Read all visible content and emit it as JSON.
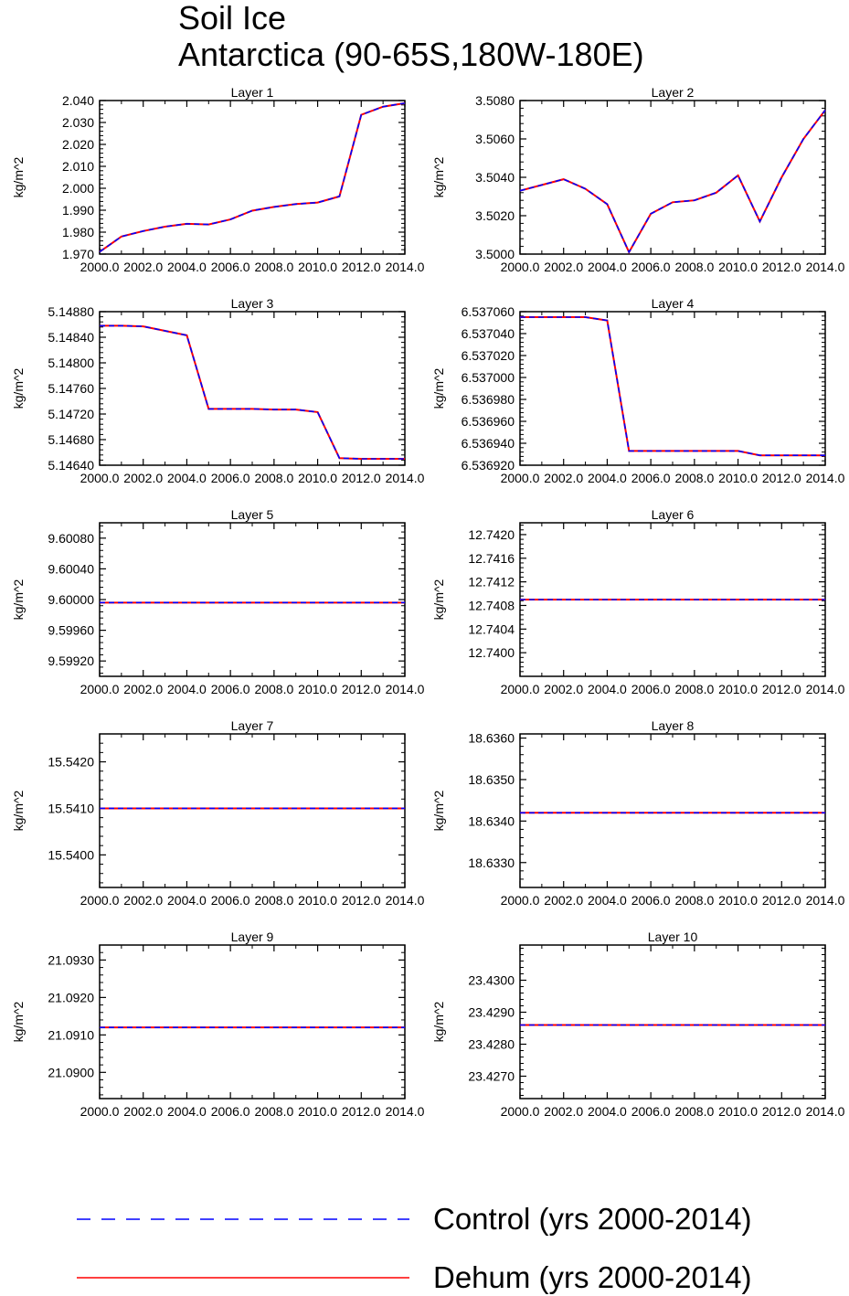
{
  "figure": {
    "title_line1": "Soil Ice",
    "title_line2": "Antarctica (90-65S,180W-180E)"
  },
  "colors": {
    "control": "#0000ff",
    "dehum": "#ff0000",
    "axis": "#000000"
  },
  "legend": [
    {
      "label": "Control (yrs 2000-2014)",
      "style": "dashed",
      "color": "#0000ff"
    },
    {
      "label": "Dehum (yrs 2000-2014)",
      "style": "solid",
      "color": "#ff0000"
    }
  ],
  "chart_data": [
    {
      "type": "line",
      "title": "Layer 1",
      "ylabel": "kg/m^2",
      "xlim": [
        2000,
        2014
      ],
      "ylim": [
        1.97,
        2.04
      ],
      "xticks": [
        2000,
        2002,
        2004,
        2006,
        2008,
        2010,
        2012,
        2014
      ],
      "xticklabels": [
        "2000.0",
        "2002.0",
        "2004.0",
        "2006.0",
        "2008.0",
        "2010.0",
        "2012.0",
        "2014.0"
      ],
      "yticks": [
        1.97,
        1.98,
        1.99,
        2.0,
        2.01,
        2.02,
        2.03,
        2.04
      ],
      "yticklabels": [
        "1.970",
        "1.980",
        "1.990",
        "2.000",
        "2.010",
        "2.020",
        "2.030",
        "2.040"
      ],
      "x": [
        2000,
        2001,
        2002,
        2003,
        2004,
        2005,
        2006,
        2007,
        2008,
        2009,
        2010,
        2011,
        2012,
        2013,
        2014
      ],
      "series": [
        {
          "name": "Control (yrs 2000-2014)",
          "values": [
            1.971,
            1.978,
            1.9805,
            1.9825,
            1.9838,
            1.9835,
            1.9858,
            1.9898,
            1.9915,
            1.9928,
            1.9935,
            1.9963,
            2.0335,
            2.0372,
            2.0388
          ]
        },
        {
          "name": "Dehum (yrs 2000-2014)",
          "values": [
            1.971,
            1.978,
            1.9805,
            1.9825,
            1.9838,
            1.9835,
            1.9858,
            1.9898,
            1.9915,
            1.9928,
            1.9935,
            1.9963,
            2.0335,
            2.0372,
            2.0388
          ]
        }
      ]
    },
    {
      "type": "line",
      "title": "Layer 2",
      "ylabel": "kg/m^2",
      "xlim": [
        2000,
        2014
      ],
      "ylim": [
        3.5,
        3.508
      ],
      "xticks": [
        2000,
        2002,
        2004,
        2006,
        2008,
        2010,
        2012,
        2014
      ],
      "xticklabels": [
        "2000.0",
        "2002.0",
        "2004.0",
        "2006.0",
        "2008.0",
        "2010.0",
        "2012.0",
        "2014.0"
      ],
      "yticks": [
        3.5,
        3.502,
        3.504,
        3.506,
        3.508
      ],
      "yticklabels": [
        "3.5000",
        "3.5020",
        "3.5040",
        "3.5060",
        "3.5080"
      ],
      "x": [
        2000,
        2001,
        2002,
        2003,
        2004,
        2005,
        2006,
        2007,
        2008,
        2009,
        2010,
        2011,
        2012,
        2013,
        2014
      ],
      "series": [
        {
          "name": "Control (yrs 2000-2014)",
          "values": [
            3.5033,
            3.5036,
            3.5039,
            3.5034,
            3.5026,
            3.5001,
            3.5021,
            3.5027,
            3.5028,
            3.5032,
            3.5041,
            3.5017,
            3.504,
            3.506,
            3.5075
          ]
        },
        {
          "name": "Dehum (yrs 2000-2014)",
          "values": [
            3.5033,
            3.5036,
            3.5039,
            3.5034,
            3.5026,
            3.5001,
            3.5021,
            3.5027,
            3.5028,
            3.5032,
            3.5041,
            3.5017,
            3.504,
            3.506,
            3.5075
          ]
        }
      ]
    },
    {
      "type": "line",
      "title": "Layer 3",
      "ylabel": "kg/m^2",
      "xlim": [
        2000,
        2014
      ],
      "ylim": [
        5.1464,
        5.1488
      ],
      "xticks": [
        2000,
        2002,
        2004,
        2006,
        2008,
        2010,
        2012,
        2014
      ],
      "xticklabels": [
        "2000.0",
        "2002.0",
        "2004.0",
        "2006.0",
        "2008.0",
        "2010.0",
        "2012.0",
        "2014.0"
      ],
      "yticks": [
        5.1464,
        5.1468,
        5.1472,
        5.1476,
        5.148,
        5.1484,
        5.1488
      ],
      "yticklabels": [
        "5.14640",
        "5.14680",
        "5.14720",
        "5.14760",
        "5.14800",
        "5.14840",
        "5.14880"
      ],
      "x": [
        2000,
        2001,
        2002,
        2003,
        2004,
        2005,
        2006,
        2007,
        2008,
        2009,
        2010,
        2011,
        2012,
        2013,
        2014
      ],
      "series": [
        {
          "name": "Control (yrs 2000-2014)",
          "values": [
            5.14858,
            5.14858,
            5.14857,
            5.1485,
            5.14843,
            5.14728,
            5.14728,
            5.14728,
            5.14727,
            5.14727,
            5.14723,
            5.14651,
            5.1465,
            5.1465,
            5.1465
          ]
        },
        {
          "name": "Dehum (yrs 2000-2014)",
          "values": [
            5.14858,
            5.14858,
            5.14857,
            5.1485,
            5.14843,
            5.14728,
            5.14728,
            5.14728,
            5.14727,
            5.14727,
            5.14723,
            5.14651,
            5.1465,
            5.1465,
            5.1465
          ]
        }
      ]
    },
    {
      "type": "line",
      "title": "Layer 4",
      "ylabel": "kg/m^2",
      "xlim": [
        2000,
        2014
      ],
      "ylim": [
        6.53692,
        6.53706
      ],
      "xticks": [
        2000,
        2002,
        2004,
        2006,
        2008,
        2010,
        2012,
        2014
      ],
      "xticklabels": [
        "2000.0",
        "2002.0",
        "2004.0",
        "2006.0",
        "2008.0",
        "2010.0",
        "2012.0",
        "2014.0"
      ],
      "yticks": [
        6.53692,
        6.53694,
        6.53696,
        6.53698,
        6.537,
        6.53702,
        6.53704,
        6.53706
      ],
      "yticklabels": [
        "6.536920",
        "6.536940",
        "6.536960",
        "6.536980",
        "6.537000",
        "6.537020",
        "6.537040",
        "6.537060"
      ],
      "x": [
        2000,
        2001,
        2002,
        2003,
        2004,
        2005,
        2006,
        2007,
        2008,
        2009,
        2010,
        2011,
        2012,
        2013,
        2014
      ],
      "series": [
        {
          "name": "Control (yrs 2000-2014)",
          "values": [
            6.537055,
            6.537055,
            6.537055,
            6.537055,
            6.537052,
            6.536933,
            6.536933,
            6.536933,
            6.536933,
            6.536933,
            6.536933,
            6.536929,
            6.536929,
            6.536929,
            6.536929
          ]
        },
        {
          "name": "Dehum (yrs 2000-2014)",
          "values": [
            6.537055,
            6.537055,
            6.537055,
            6.537055,
            6.537052,
            6.536933,
            6.536933,
            6.536933,
            6.536933,
            6.536933,
            6.536933,
            6.536929,
            6.536929,
            6.536929,
            6.536929
          ]
        }
      ]
    },
    {
      "type": "line",
      "title": "Layer 5",
      "ylabel": "kg/m^2",
      "xlim": [
        2000,
        2014
      ],
      "ylim": [
        9.599,
        9.601
      ],
      "xticks": [
        2000,
        2002,
        2004,
        2006,
        2008,
        2010,
        2012,
        2014
      ],
      "xticklabels": [
        "2000.0",
        "2002.0",
        "2004.0",
        "2006.0",
        "2008.0",
        "2010.0",
        "2012.0",
        "2014.0"
      ],
      "yticks": [
        9.5992,
        9.5996,
        9.6,
        9.6004,
        9.6008
      ],
      "yticklabels": [
        "9.59920",
        "9.59960",
        "9.60000",
        "9.60040",
        "9.60080"
      ],
      "x": [
        2000,
        2001,
        2002,
        2003,
        2004,
        2005,
        2006,
        2007,
        2008,
        2009,
        2010,
        2011,
        2012,
        2013,
        2014
      ],
      "series": [
        {
          "name": "Control (yrs 2000-2014)",
          "values": [
            9.59996,
            9.59996,
            9.59996,
            9.59996,
            9.59996,
            9.59996,
            9.59996,
            9.59996,
            9.59996,
            9.59996,
            9.59996,
            9.59996,
            9.59996,
            9.59996,
            9.59996
          ]
        },
        {
          "name": "Dehum (yrs 2000-2014)",
          "values": [
            9.59996,
            9.59996,
            9.59996,
            9.59996,
            9.59996,
            9.59996,
            9.59996,
            9.59996,
            9.59996,
            9.59996,
            9.59996,
            9.59996,
            9.59996,
            9.59996,
            9.59996
          ]
        }
      ]
    },
    {
      "type": "line",
      "title": "Layer 6",
      "ylabel": "kg/m^2",
      "xlim": [
        2000,
        2014
      ],
      "ylim": [
        12.7396,
        12.7422
      ],
      "xticks": [
        2000,
        2002,
        2004,
        2006,
        2008,
        2010,
        2012,
        2014
      ],
      "xticklabels": [
        "2000.0",
        "2002.0",
        "2004.0",
        "2006.0",
        "2008.0",
        "2010.0",
        "2012.0",
        "2014.0"
      ],
      "yticks": [
        12.74,
        12.7404,
        12.7408,
        12.7412,
        12.7416,
        12.742
      ],
      "yticklabels": [
        "12.7400",
        "12.7404",
        "12.7408",
        "12.7412",
        "12.7416",
        "12.7420"
      ],
      "x": [
        2000,
        2001,
        2002,
        2003,
        2004,
        2005,
        2006,
        2007,
        2008,
        2009,
        2010,
        2011,
        2012,
        2013,
        2014
      ],
      "series": [
        {
          "name": "Control (yrs 2000-2014)",
          "values": [
            12.7409,
            12.7409,
            12.7409,
            12.7409,
            12.7409,
            12.7409,
            12.7409,
            12.7409,
            12.7409,
            12.7409,
            12.7409,
            12.7409,
            12.7409,
            12.7409,
            12.7409
          ]
        },
        {
          "name": "Dehum (yrs 2000-2014)",
          "values": [
            12.7409,
            12.7409,
            12.7409,
            12.7409,
            12.7409,
            12.7409,
            12.7409,
            12.7409,
            12.7409,
            12.7409,
            12.7409,
            12.7409,
            12.7409,
            12.7409,
            12.7409
          ]
        }
      ]
    },
    {
      "type": "line",
      "title": "Layer 7",
      "ylabel": "kg/m^2",
      "xlim": [
        2000,
        2014
      ],
      "ylim": [
        15.5393,
        15.5426
      ],
      "xticks": [
        2000,
        2002,
        2004,
        2006,
        2008,
        2010,
        2012,
        2014
      ],
      "xticklabels": [
        "2000.0",
        "2002.0",
        "2004.0",
        "2006.0",
        "2008.0",
        "2010.0",
        "2012.0",
        "2014.0"
      ],
      "yticks": [
        15.54,
        15.541,
        15.542
      ],
      "yticklabels": [
        "15.5400",
        "15.5410",
        "15.5420"
      ],
      "x": [
        2000,
        2001,
        2002,
        2003,
        2004,
        2005,
        2006,
        2007,
        2008,
        2009,
        2010,
        2011,
        2012,
        2013,
        2014
      ],
      "series": [
        {
          "name": "Control (yrs 2000-2014)",
          "values": [
            15.541,
            15.541,
            15.541,
            15.541,
            15.541,
            15.541,
            15.541,
            15.541,
            15.541,
            15.541,
            15.541,
            15.541,
            15.541,
            15.541,
            15.541
          ]
        },
        {
          "name": "Dehum (yrs 2000-2014)",
          "values": [
            15.541,
            15.541,
            15.541,
            15.541,
            15.541,
            15.541,
            15.541,
            15.541,
            15.541,
            15.541,
            15.541,
            15.541,
            15.541,
            15.541,
            15.541
          ]
        }
      ]
    },
    {
      "type": "line",
      "title": "Layer 8",
      "ylabel": "kg/m^2",
      "xlim": [
        2000,
        2014
      ],
      "ylim": [
        18.6324,
        18.6361
      ],
      "xticks": [
        2000,
        2002,
        2004,
        2006,
        2008,
        2010,
        2012,
        2014
      ],
      "xticklabels": [
        "2000.0",
        "2002.0",
        "2004.0",
        "2006.0",
        "2008.0",
        "2010.0",
        "2012.0",
        "2014.0"
      ],
      "yticks": [
        18.633,
        18.634,
        18.635,
        18.636
      ],
      "yticklabels": [
        "18.6330",
        "18.6340",
        "18.6350",
        "18.6360"
      ],
      "x": [
        2000,
        2001,
        2002,
        2003,
        2004,
        2005,
        2006,
        2007,
        2008,
        2009,
        2010,
        2011,
        2012,
        2013,
        2014
      ],
      "series": [
        {
          "name": "Control (yrs 2000-2014)",
          "values": [
            18.6342,
            18.6342,
            18.6342,
            18.6342,
            18.6342,
            18.6342,
            18.6342,
            18.6342,
            18.6342,
            18.6342,
            18.6342,
            18.6342,
            18.6342,
            18.6342,
            18.6342
          ]
        },
        {
          "name": "Dehum (yrs 2000-2014)",
          "values": [
            18.6342,
            18.6342,
            18.6342,
            18.6342,
            18.6342,
            18.6342,
            18.6342,
            18.6342,
            18.6342,
            18.6342,
            18.6342,
            18.6342,
            18.6342,
            18.6342,
            18.6342
          ]
        }
      ]
    },
    {
      "type": "line",
      "title": "Layer 9",
      "ylabel": "kg/m^2",
      "xlim": [
        2000,
        2014
      ],
      "ylim": [
        21.0893,
        21.0934
      ],
      "xticks": [
        2000,
        2002,
        2004,
        2006,
        2008,
        2010,
        2012,
        2014
      ],
      "xticklabels": [
        "2000.0",
        "2002.0",
        "2004.0",
        "2006.0",
        "2008.0",
        "2010.0",
        "2012.0",
        "2014.0"
      ],
      "yticks": [
        21.09,
        21.091,
        21.092,
        21.093
      ],
      "yticklabels": [
        "21.0900",
        "21.0910",
        "21.0920",
        "21.0930"
      ],
      "x": [
        2000,
        2001,
        2002,
        2003,
        2004,
        2005,
        2006,
        2007,
        2008,
        2009,
        2010,
        2011,
        2012,
        2013,
        2014
      ],
      "series": [
        {
          "name": "Control (yrs 2000-2014)",
          "values": [
            21.0912,
            21.0912,
            21.0912,
            21.0912,
            21.0912,
            21.0912,
            21.0912,
            21.0912,
            21.0912,
            21.0912,
            21.0912,
            21.0912,
            21.0912,
            21.0912,
            21.0912
          ]
        },
        {
          "name": "Dehum (yrs 2000-2014)",
          "values": [
            21.0912,
            21.0912,
            21.0912,
            21.0912,
            21.0912,
            21.0912,
            21.0912,
            21.0912,
            21.0912,
            21.0912,
            21.0912,
            21.0912,
            21.0912,
            21.0912,
            21.0912
          ]
        }
      ]
    },
    {
      "type": "line",
      "title": "Layer 10",
      "ylabel": "kg/m^2",
      "xlim": [
        2000,
        2014
      ],
      "ylim": [
        23.4263,
        23.4311
      ],
      "xticks": [
        2000,
        2002,
        2004,
        2006,
        2008,
        2010,
        2012,
        2014
      ],
      "xticklabels": [
        "2000.0",
        "2002.0",
        "2004.0",
        "2006.0",
        "2008.0",
        "2010.0",
        "2012.0",
        "2014.0"
      ],
      "yticks": [
        23.427,
        23.428,
        23.429,
        23.43
      ],
      "yticklabels": [
        "23.4270",
        "23.4280",
        "23.4290",
        "23.4300"
      ],
      "x": [
        2000,
        2001,
        2002,
        2003,
        2004,
        2005,
        2006,
        2007,
        2008,
        2009,
        2010,
        2011,
        2012,
        2013,
        2014
      ],
      "series": [
        {
          "name": "Control (yrs 2000-2014)",
          "values": [
            23.4286,
            23.4286,
            23.4286,
            23.4286,
            23.4286,
            23.4286,
            23.4286,
            23.4286,
            23.4286,
            23.4286,
            23.4286,
            23.4286,
            23.4286,
            23.4286,
            23.4286
          ]
        },
        {
          "name": "Dehum (yrs 2000-2014)",
          "values": [
            23.4286,
            23.4286,
            23.4286,
            23.4286,
            23.4286,
            23.4286,
            23.4286,
            23.4286,
            23.4286,
            23.4286,
            23.4286,
            23.4286,
            23.4286,
            23.4286,
            23.4286
          ]
        }
      ]
    }
  ]
}
